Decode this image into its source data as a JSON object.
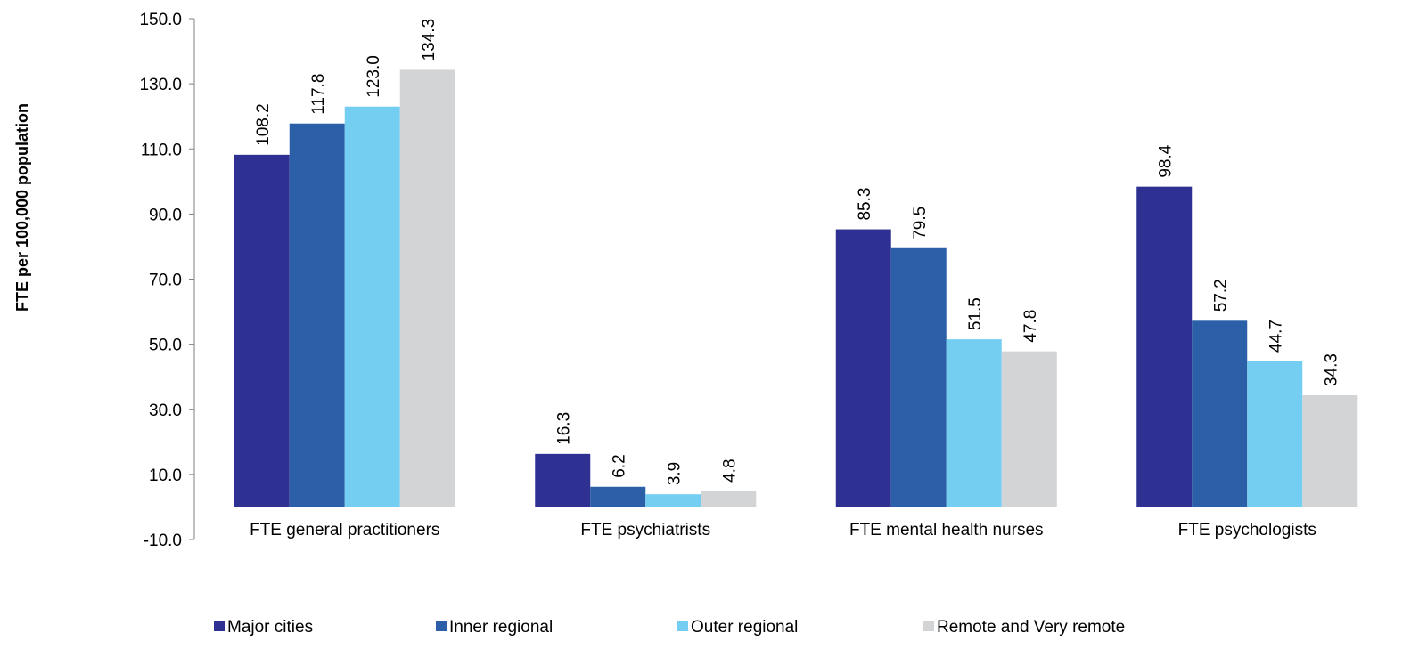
{
  "chart_data": {
    "type": "bar",
    "title": "",
    "ylabel": "FTE per 100,000 population",
    "xlabel": "",
    "ylim": [
      -10,
      150
    ],
    "yticks": [
      -10,
      10,
      30,
      50,
      70,
      90,
      110,
      130,
      150
    ],
    "ytick_labels": [
      "-10.0",
      "10.0",
      "30.0",
      "50.0",
      "70.0",
      "90.0",
      "110.0",
      "130.0",
      "150.0"
    ],
    "categories": [
      "FTE general practitioners",
      "FTE psychiatrists",
      "FTE mental health nurses",
      "FTE psychologists"
    ],
    "series": [
      {
        "name": "Major cities",
        "color": "#2e3192",
        "values": [
          108.2,
          16.3,
          85.3,
          98.4
        ],
        "labels": [
          "108.2",
          "16.3",
          "85.3",
          "98.4"
        ]
      },
      {
        "name": "Inner regional",
        "color": "#2b5fa8",
        "values": [
          117.8,
          6.2,
          79.5,
          57.2
        ],
        "labels": [
          "117.8",
          "6.2",
          "79.5",
          "57.2"
        ]
      },
      {
        "name": "Outer regional",
        "color": "#73cef2",
        "values": [
          123.0,
          3.9,
          51.5,
          44.7
        ],
        "labels": [
          "123.0",
          "3.9",
          "51.5",
          "44.7"
        ]
      },
      {
        "name": "Remote and Very remote",
        "color": "#d3d4d6",
        "values": [
          134.3,
          4.8,
          47.8,
          34.3
        ],
        "labels": [
          "134.3",
          "4.8",
          "47.8",
          "34.3"
        ]
      }
    ],
    "grid": false,
    "data_labels": true,
    "legend_position": "bottom"
  }
}
